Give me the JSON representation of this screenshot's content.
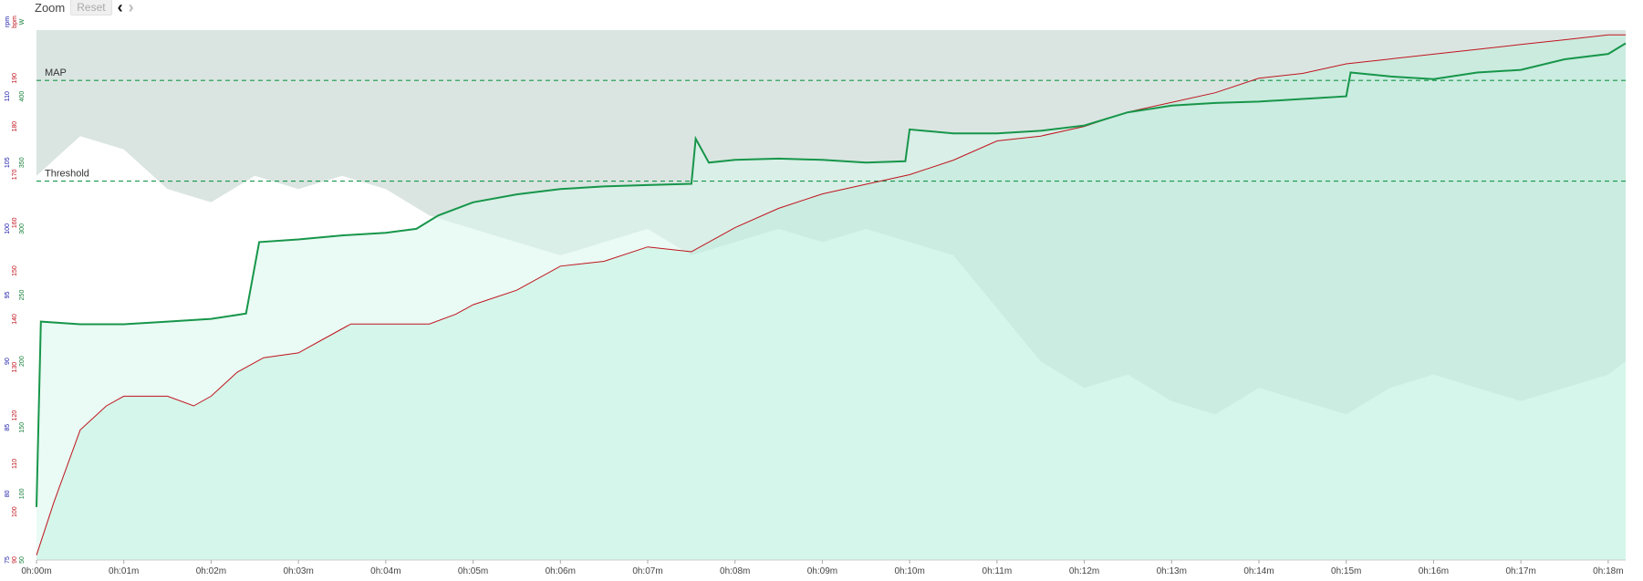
{
  "toolbar": {
    "zoom_label": "Zoom",
    "reset_label": "Reset",
    "prev_icon": "chevron-left-icon",
    "next_icon": "chevron-right-icon"
  },
  "chart_data": {
    "type": "line",
    "x_unit": "minutes",
    "x_ticks": [
      "0h:00m",
      "0h:01m",
      "0h:02m",
      "0h:03m",
      "0h:04m",
      "0h:05m",
      "0h:06m",
      "0h:07m",
      "0h:08m",
      "0h:09m",
      "0h:10m",
      "0h:11m",
      "0h:12m",
      "0h:13m",
      "0h:14m",
      "0h:15m",
      "0h:16m",
      "0h:17m",
      "0h:18m"
    ],
    "xlim": [
      0,
      18.2
    ],
    "axes": [
      {
        "unit": "rpm",
        "color": "#1a1aa8",
        "ylim": [
          75,
          115
        ],
        "ticks": [
          75,
          80,
          85,
          90,
          95,
          100,
          105,
          110
        ]
      },
      {
        "unit": "bpm",
        "color": "#c0141e",
        "ylim": [
          90,
          200
        ],
        "ticks": [
          90,
          100,
          110,
          120,
          130,
          140,
          150,
          160,
          170,
          180,
          190
        ]
      },
      {
        "unit": "W",
        "color": "#17803a",
        "ylim": [
          50,
          450
        ],
        "ticks": [
          50,
          100,
          150,
          200,
          250,
          300,
          350,
          400
        ]
      }
    ],
    "reference_lines": [
      {
        "label": "MAP",
        "axis": "W",
        "value": 412
      },
      {
        "label": "Threshold",
        "axis": "W",
        "value": 336
      }
    ],
    "series": [
      {
        "name": "",
        "axis": "W",
        "color": "#17964a",
        "points": [
          [
            0,
            90
          ],
          [
            0.05,
            230
          ],
          [
            0.5,
            228
          ],
          [
            1,
            228
          ],
          [
            1.5,
            230
          ],
          [
            2,
            232
          ],
          [
            2.4,
            236
          ],
          [
            2.55,
            290
          ],
          [
            3,
            292
          ],
          [
            3.5,
            295
          ],
          [
            4,
            297
          ],
          [
            4.35,
            300
          ],
          [
            4.6,
            310
          ],
          [
            5,
            320
          ],
          [
            5.5,
            326
          ],
          [
            6,
            330
          ],
          [
            6.5,
            332
          ],
          [
            7,
            333
          ],
          [
            7.5,
            334
          ],
          [
            7.55,
            368
          ],
          [
            7.7,
            350
          ],
          [
            8,
            352
          ],
          [
            8.5,
            353
          ],
          [
            9,
            352
          ],
          [
            9.5,
            350
          ],
          [
            9.95,
            351
          ],
          [
            10,
            375
          ],
          [
            10.5,
            372
          ],
          [
            11,
            372
          ],
          [
            11.5,
            374
          ],
          [
            12,
            378
          ],
          [
            12.5,
            388
          ],
          [
            13,
            393
          ],
          [
            13.5,
            395
          ],
          [
            14,
            396
          ],
          [
            14.5,
            398
          ],
          [
            15,
            400
          ],
          [
            15.05,
            418
          ],
          [
            15.5,
            415
          ],
          [
            16,
            413
          ],
          [
            16.5,
            418
          ],
          [
            17,
            420
          ],
          [
            17.5,
            428
          ],
          [
            18,
            432
          ],
          [
            18.2,
            440
          ]
        ]
      },
      {
        "name": "",
        "axis": "bpm",
        "color": "#c0141e",
        "points": [
          [
            0,
            91
          ],
          [
            0.2,
            102
          ],
          [
            0.5,
            117
          ],
          [
            0.8,
            122
          ],
          [
            1,
            124
          ],
          [
            1.5,
            124
          ],
          [
            1.8,
            122
          ],
          [
            2,
            124
          ],
          [
            2.3,
            129
          ],
          [
            2.6,
            132
          ],
          [
            3,
            133
          ],
          [
            3.3,
            136
          ],
          [
            3.6,
            139
          ],
          [
            4,
            139
          ],
          [
            4.5,
            139
          ],
          [
            4.8,
            141
          ],
          [
            5,
            143
          ],
          [
            5.5,
            146
          ],
          [
            6,
            151
          ],
          [
            6.5,
            152
          ],
          [
            7,
            155
          ],
          [
            7.5,
            154
          ],
          [
            8,
            159
          ],
          [
            8.5,
            163
          ],
          [
            9,
            166
          ],
          [
            9.5,
            168
          ],
          [
            10,
            170
          ],
          [
            10.5,
            173
          ],
          [
            11,
            177
          ],
          [
            11.5,
            178
          ],
          [
            12,
            180
          ],
          [
            12.5,
            183
          ],
          [
            13,
            185
          ],
          [
            13.5,
            187
          ],
          [
            14,
            190
          ],
          [
            14.5,
            191
          ],
          [
            15,
            193
          ],
          [
            15.5,
            194
          ],
          [
            16,
            195
          ],
          [
            16.5,
            196
          ],
          [
            17,
            197
          ],
          [
            17.5,
            198
          ],
          [
            18,
            199
          ],
          [
            18.2,
            199
          ]
        ]
      },
      {
        "name": "",
        "axis": "rpm",
        "color": "#dddddd",
        "points": [
          [
            0,
            104
          ],
          [
            0.5,
            107
          ],
          [
            1,
            106
          ],
          [
            1.5,
            103
          ],
          [
            2,
            102
          ],
          [
            2.5,
            104
          ],
          [
            3,
            103
          ],
          [
            3.5,
            104
          ],
          [
            4,
            103
          ],
          [
            4.5,
            101
          ],
          [
            5,
            100
          ],
          [
            5.5,
            99
          ],
          [
            6,
            98
          ],
          [
            6.5,
            99
          ],
          [
            7,
            100
          ],
          [
            7.5,
            98
          ],
          [
            8,
            99
          ],
          [
            8.5,
            100
          ],
          [
            9,
            99
          ],
          [
            9.5,
            100
          ],
          [
            10,
            99
          ],
          [
            10.5,
            98
          ],
          [
            11,
            94
          ],
          [
            11.5,
            90
          ],
          [
            12,
            88
          ],
          [
            12.5,
            89
          ],
          [
            13,
            87
          ],
          [
            13.5,
            86
          ],
          [
            14,
            88
          ],
          [
            14.5,
            87
          ],
          [
            15,
            86
          ],
          [
            15.5,
            88
          ],
          [
            16,
            89
          ],
          [
            16.5,
            88
          ],
          [
            17,
            87
          ],
          [
            17.5,
            88
          ],
          [
            18,
            89
          ],
          [
            18.2,
            90
          ]
        ]
      }
    ],
    "grid": false,
    "legend": "none"
  }
}
